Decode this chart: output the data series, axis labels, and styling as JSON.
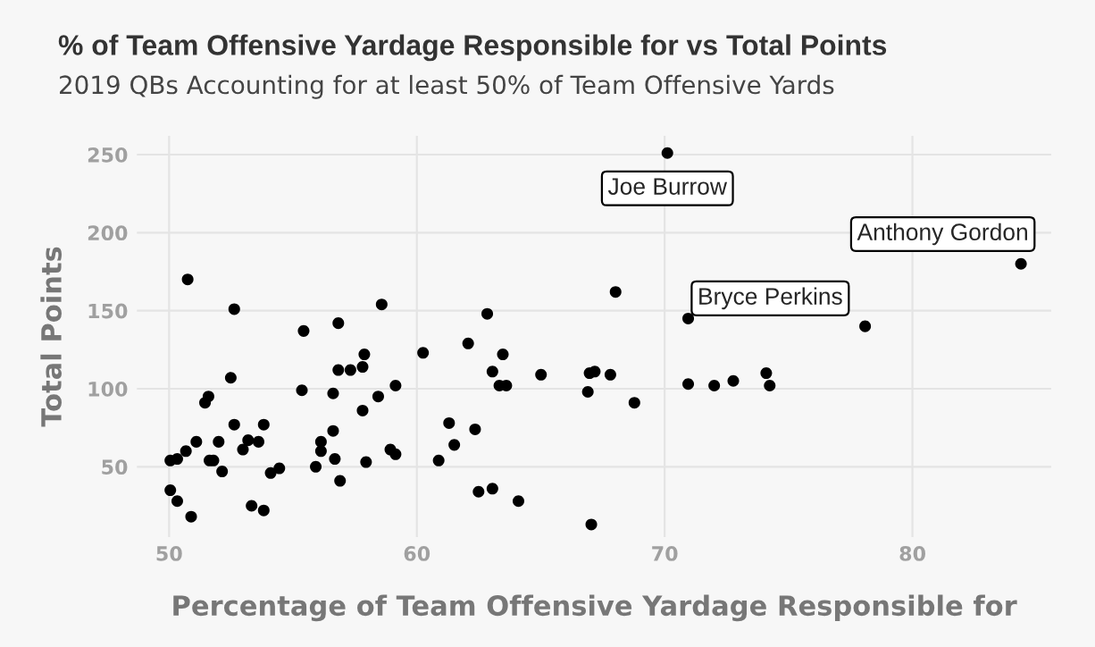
{
  "chart_data": {
    "type": "scatter",
    "title": "% of Team Offensive Yardage Responsible for vs Total Points",
    "subtitle": "2019 QBs Accounting for at least 50% of Team Offensive Yards",
    "xlabel": "Percentage of Team Offensive Yardage Responsible for",
    "ylabel": "Total Points",
    "series": [
      {
        "color": "#000000",
        "x": [
          50.75,
          52.63,
          52.49,
          51.45,
          51.59,
          51.1,
          50.68,
          50.05,
          50.33,
          50.05,
          50.33,
          50.89,
          51.63,
          51.79,
          52.0,
          52.14,
          52.63,
          52.98,
          53.19,
          53.61,
          53.82,
          53.33,
          53.82,
          54.1,
          54.45,
          55.43,
          55.36,
          55.92,
          56.13,
          56.13,
          56.62,
          56.62,
          56.69,
          56.83,
          56.83,
          56.9,
          57.32,
          57.81,
          57.88,
          57.81,
          57.95,
          58.44,
          58.58,
          58.93,
          59.14,
          59.14,
          60.25,
          70.11,
          68.02,
          62.84,
          62.07,
          63.47,
          63.05,
          63.33,
          63.61,
          65.01,
          66.9,
          66.97,
          67.18,
          67.81,
          68.78,
          70.95,
          70.95,
          72.0,
          72.77,
          61.3,
          62.35,
          61.51,
          60.88,
          62.49,
          63.05,
          64.1,
          67.04,
          74.1,
          74.24,
          78.09,
          84.38
        ],
        "values": [
          170,
          151,
          107,
          91,
          95,
          66,
          60,
          54,
          55,
          35,
          28,
          18,
          54,
          54,
          66,
          47,
          77,
          61,
          67,
          66,
          77,
          25,
          22,
          46,
          49,
          137,
          99,
          50,
          66,
          60,
          73,
          97,
          55,
          142,
          112,
          41,
          112,
          114,
          122,
          86,
          53,
          95,
          154,
          61,
          102,
          58,
          123,
          251,
          162,
          148,
          129,
          122,
          111,
          102,
          102,
          109,
          98,
          110,
          111,
          109,
          91,
          145,
          103,
          102,
          105,
          78,
          74,
          64,
          54,
          34,
          36,
          28,
          13,
          110,
          102,
          140,
          180
        ]
      }
    ],
    "annotations": [
      {
        "text": "Joe Burrow",
        "x": 70.11,
        "y": 251
      },
      {
        "text": "Bryce Perkins",
        "x": 78.09,
        "y": 140
      },
      {
        "text": "Anthony Gordon",
        "x": 84.38,
        "y": 180
      }
    ],
    "xlim": [
      48.7,
      85.6
    ],
    "ylim": [
      5,
      262
    ],
    "xticks": [
      50,
      60,
      70,
      80
    ],
    "yticks": [
      50,
      100,
      150,
      200,
      250
    ],
    "grid": true,
    "marker": "circle"
  }
}
